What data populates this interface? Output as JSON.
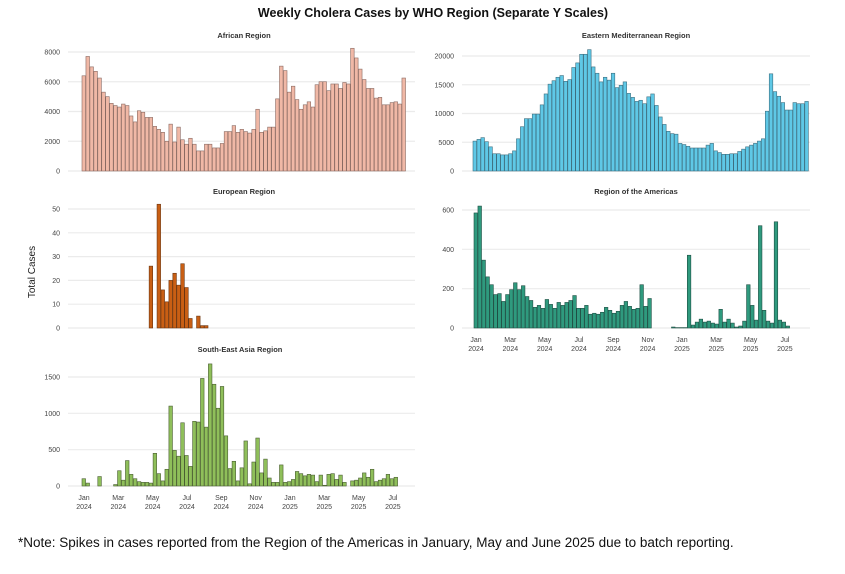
{
  "chart_data": {
    "title": "Weekly Cholera Cases by WHO Region (Separate Y Scales)",
    "ylabel": "Total Cases",
    "note": "*Note: Spikes in cases reported from the Region of the Americas in January, May and June 2025 due to batch reporting.",
    "x_tick_labels": [
      {
        "month": "Jan",
        "year": "2024"
      },
      {
        "month": "Mar",
        "year": "2024"
      },
      {
        "month": "May",
        "year": "2024"
      },
      {
        "month": "Jul",
        "year": "2024"
      },
      {
        "month": "Sep",
        "year": "2024"
      },
      {
        "month": "Nov",
        "year": "2024"
      },
      {
        "month": "Jan",
        "year": "2025"
      },
      {
        "month": "Mar",
        "year": "2025"
      },
      {
        "month": "May",
        "year": "2025"
      },
      {
        "month": "Jul",
        "year": "2025"
      }
    ],
    "panels": [
      {
        "type": "bar",
        "title": "African Region",
        "color": "#f0b8a6",
        "edge": "#8a6a62",
        "ylim": [
          0,
          8000
        ],
        "yticks": [
          0,
          2000,
          4000,
          6000,
          8000
        ],
        "show_xticks": false,
        "start_week": 0,
        "values": [
          6400,
          7700,
          7000,
          6700,
          6250,
          5300,
          5000,
          4550,
          4400,
          4300,
          4500,
          4400,
          3700,
          3300,
          4050,
          3950,
          3600,
          3600,
          3000,
          2800,
          2600,
          2000,
          3150,
          1950,
          2950,
          2100,
          1800,
          2200,
          1800,
          1350,
          1350,
          1800,
          1800,
          1550,
          1550,
          1850,
          2650,
          2650,
          3050,
          2600,
          2800,
          2650,
          2550,
          2800,
          4150,
          2600,
          2700,
          2950,
          2950,
          4850,
          7050,
          6750,
          5300,
          5700,
          4800,
          4150,
          4450,
          4650,
          4300,
          5800,
          6000,
          6000,
          5400,
          5850,
          5850,
          5550,
          5950,
          5850,
          8250,
          7600,
          6850,
          6150,
          5550,
          5550,
          4900,
          4950,
          4450,
          4450,
          4600,
          4650,
          4500,
          6250
        ]
      },
      {
        "type": "bar",
        "title": "Eastern Mediterranean Region",
        "color": "#5fc8e6",
        "edge": "#3d6f80",
        "ylim": [
          0,
          21000
        ],
        "yticks": [
          0,
          5000,
          10000,
          15000,
          20000
        ],
        "show_xticks": false,
        "start_week": 0,
        "values": [
          5200,
          5500,
          5800,
          5100,
          4200,
          3000,
          3000,
          2800,
          2800,
          3000,
          3500,
          5600,
          7700,
          9100,
          9100,
          9900,
          9900,
          11500,
          13400,
          15100,
          15700,
          16300,
          16600,
          15600,
          15900,
          18000,
          18800,
          20300,
          20300,
          21100,
          18100,
          17000,
          15500,
          16300,
          15800,
          17000,
          14500,
          14900,
          15500,
          13500,
          12800,
          12100,
          12300,
          11700,
          12900,
          13400,
          11400,
          9400,
          8100,
          6900,
          6500,
          6400,
          4800,
          4600,
          4300,
          4000,
          4000,
          4000,
          4000,
          4500,
          4800,
          3500,
          3200,
          2900,
          2900,
          3000,
          3000,
          3400,
          3800,
          4200,
          4500,
          4800,
          5200,
          5600,
          10400,
          16900,
          13800,
          13000,
          11900,
          10600,
          10600,
          11900,
          11700,
          11700,
          12100
        ]
      },
      {
        "type": "bar",
        "title": "European Region",
        "color": "#c95f14",
        "edge": "#6b3510",
        "ylim": [
          0,
          53
        ],
        "yticks": [
          0,
          10,
          20,
          30,
          40,
          50
        ],
        "show_xticks": false,
        "start_week": 17,
        "values": [
          26,
          0,
          52,
          16,
          11,
          20,
          23,
          18,
          27,
          17,
          4,
          0,
          5,
          1,
          1
        ]
      },
      {
        "type": "bar",
        "title": "Region of the Americas",
        "color": "#2f9a7e",
        "edge": "#1f4f44",
        "ylim": [
          0,
          630
        ],
        "yticks": [
          0,
          200,
          400,
          600
        ],
        "show_xticks": true,
        "start_week": 0,
        "values": [
          585,
          620,
          345,
          260,
          220,
          170,
          175,
          135,
          170,
          195,
          230,
          195,
          215,
          160,
          140,
          105,
          115,
          100,
          145,
          120,
          100,
          130,
          115,
          130,
          140,
          165,
          100,
          100,
          115,
          70,
          75,
          70,
          80,
          105,
          90,
          75,
          85,
          115,
          135,
          110,
          95,
          100,
          220,
          110,
          150,
          null,
          null,
          null,
          null,
          null,
          5,
          2,
          2,
          2,
          370,
          15,
          30,
          45,
          30,
          35,
          25,
          20,
          95,
          30,
          45,
          25,
          5,
          10,
          35,
          220,
          115,
          40,
          520,
          90,
          35,
          25,
          540,
          40,
          30,
          10
        ]
      },
      {
        "type": "bar",
        "title": "South-East Asia Region",
        "color": "#8fbf5a",
        "edge": "#4a5e32",
        "ylim": [
          0,
          1680
        ],
        "yticks": [
          0,
          500,
          1000,
          1500
        ],
        "show_xticks": true,
        "start_week": 0,
        "values": [
          100,
          40,
          0,
          0,
          130,
          0,
          0,
          0,
          20,
          210,
          80,
          350,
          160,
          100,
          60,
          50,
          50,
          40,
          450,
          170,
          70,
          230,
          1100,
          490,
          410,
          870,
          420,
          270,
          890,
          880,
          1480,
          810,
          1680,
          1400,
          1070,
          1370,
          690,
          240,
          340,
          70,
          250,
          620,
          30,
          330,
          660,
          180,
          370,
          110,
          50,
          50,
          290,
          50,
          60,
          90,
          200,
          170,
          140,
          160,
          150,
          60,
          150,
          10,
          160,
          170,
          90,
          150,
          50,
          0,
          70,
          80,
          110,
          180,
          120,
          230,
          60,
          80,
          100,
          160,
          100,
          120,
          0,
          0,
          0,
          0
        ]
      }
    ]
  }
}
